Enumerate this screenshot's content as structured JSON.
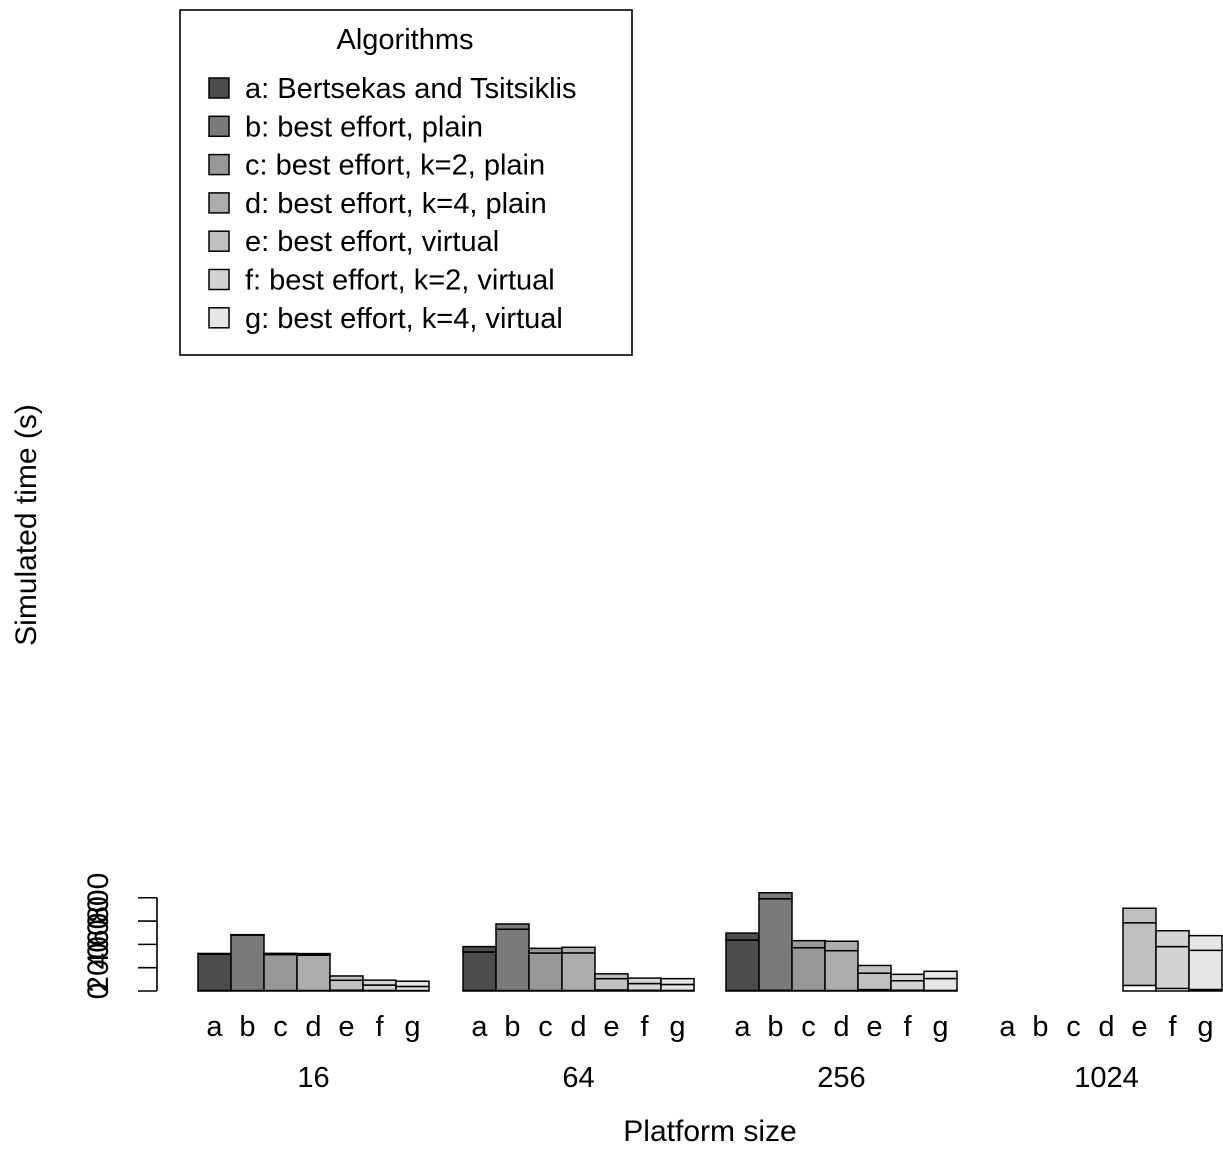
{
  "chart_data": {
    "type": "bar",
    "stacked": true,
    "xlabel": "Platform size",
    "ylabel": "Simulated time (s)",
    "ylim": [
      0,
      840
    ],
    "yticks": [
      0,
      200,
      400,
      600,
      800
    ],
    "groups": [
      "16",
      "64",
      "256",
      "1024"
    ],
    "categories": [
      "a",
      "b",
      "c",
      "d",
      "e",
      "f",
      "g"
    ],
    "legend": {
      "title": "Algorithms",
      "position": "top-left",
      "entries": [
        "a: Bertsekas and Tsitsiklis",
        "b: best effort, plain",
        "c: best effort, k=2, plain",
        "d: best effort, k=4, plain",
        "e: best effort, virtual",
        "f: best effort, k=2, virtual",
        "g: best effort, k=4, virtual"
      ]
    },
    "colors": [
      "#4d4d4d",
      "#7a7a7a",
      "#989898",
      "#acacac",
      "#c0c0c0",
      "#d4d4d4",
      "#e6e6e6"
    ],
    "segment_colors": [
      "#ffffff",
      "category",
      "category"
    ],
    "bars": [
      [
        [
          4,
          311,
          7
        ],
        [
          4,
          476,
          3
        ],
        [
          4,
          309,
          10
        ],
        [
          4,
          304,
          13
        ],
        [
          7,
          85,
          37
        ],
        [
          5,
          46,
          42
        ],
        [
          4,
          35,
          45
        ]
      ],
      [
        [
          4,
          331,
          46
        ],
        [
          4,
          526,
          45
        ],
        [
          4,
          322,
          40
        ],
        [
          4,
          323,
          48
        ],
        [
          9,
          97,
          41
        ],
        [
          6,
          58,
          47
        ],
        [
          5,
          51,
          50
        ]
      ],
      [
        [
          4,
          433,
          60
        ],
        [
          6,
          785,
          52
        ],
        [
          4,
          367,
          61
        ],
        [
          4,
          342,
          81
        ],
        [
          12,
          141,
          66
        ],
        [
          7,
          81,
          55
        ],
        [
          5,
          102,
          62
        ]
      ],
      [
        [
          0,
          0,
          0
        ],
        [
          0,
          0,
          0
        ],
        [
          0,
          0,
          0
        ],
        [
          0,
          0,
          0
        ],
        [
          48,
          537,
          125
        ],
        [
          22,
          359,
          136
        ],
        [
          13,
          336,
          126
        ]
      ]
    ]
  }
}
